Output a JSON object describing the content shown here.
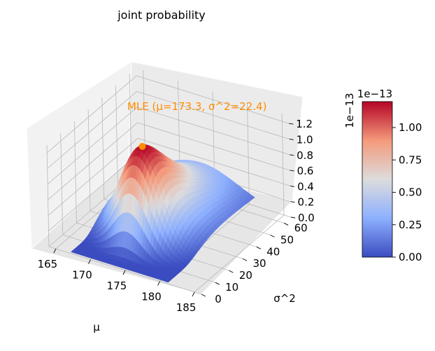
{
  "chart_data": {
    "type": "surface",
    "title": "joint probability",
    "xlabel": "μ",
    "ylabel": "σ^2",
    "zlabel": "",
    "x_ticks": [
      "165",
      "170",
      "175",
      "180",
      "185"
    ],
    "y_ticks": [
      "0",
      "10",
      "20",
      "30",
      "40",
      "50",
      "60"
    ],
    "z_ticks": [
      "0.0",
      "0.2",
      "0.4",
      "0.6",
      "0.8",
      "1.0",
      "1.2"
    ],
    "z_offset_text": "1e−13",
    "xlim": [
      164,
      186
    ],
    "ylim": [
      0,
      65
    ],
    "zlim": [
      0,
      1.3
    ],
    "mle": {
      "mu": 173.3,
      "sigma2": 22.4,
      "value": 1.2
    },
    "annotation": "MLE (μ=173.3, σ^2=22.4)",
    "annotation_color": "#ff8c00",
    "colormap": "coolwarm",
    "colorbar": {
      "ticks": [
        "0.00",
        "0.25",
        "0.50",
        "0.75",
        "1.00"
      ],
      "offset_text": "1e−13",
      "range": [
        0,
        1.2
      ]
    },
    "grid": true
  }
}
